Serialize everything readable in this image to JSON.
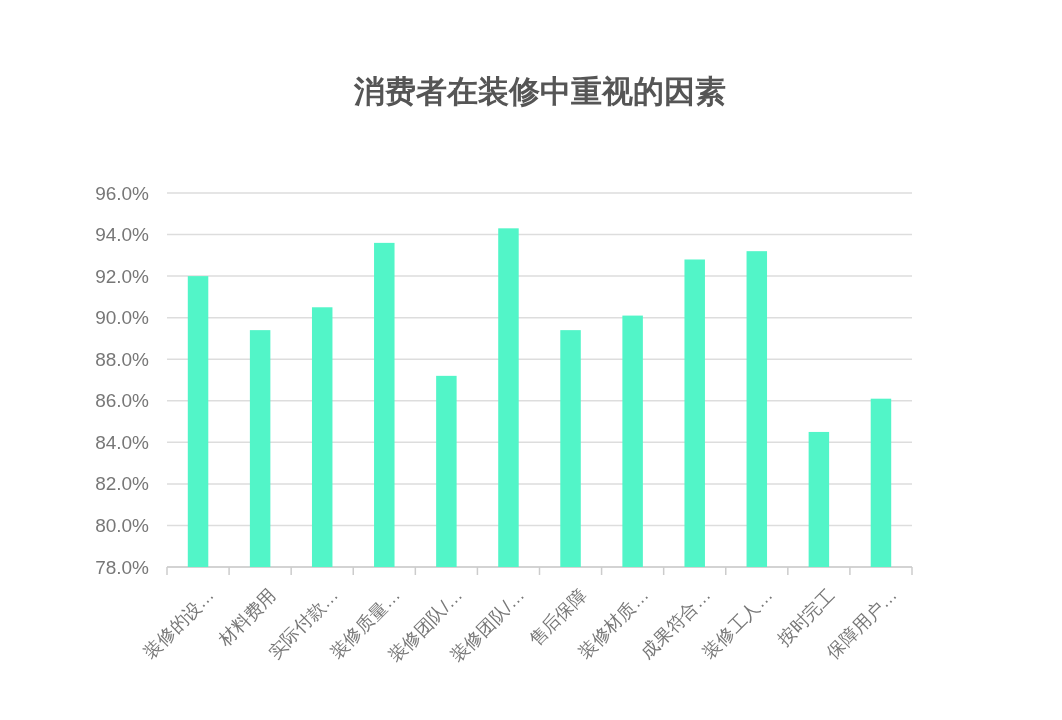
{
  "chart_data": {
    "type": "bar",
    "title": "消费者在装修中重视的因素",
    "categories": [
      "装修的设…",
      "材料费用",
      "实际付款…",
      "装修质量…",
      "装修团队/…",
      "装修团队/…",
      "售后保障",
      "装修材质…",
      "成果符合…",
      "装修工人…",
      "按时完工",
      "保障用户…"
    ],
    "values": [
      92.0,
      89.4,
      90.5,
      93.6,
      87.2,
      94.3,
      89.4,
      90.1,
      92.8,
      93.2,
      84.5,
      86.1
    ],
    "color": "#52f5c8",
    "ylim": [
      78,
      96
    ],
    "yticks": [
      {
        "value": 78,
        "label": "78.0%"
      },
      {
        "value": 80,
        "label": "80.0%"
      },
      {
        "value": 82,
        "label": "82.0%"
      },
      {
        "value": 84,
        "label": "84.0%"
      },
      {
        "value": 86,
        "label": "86.0%"
      },
      {
        "value": 88,
        "label": "88.0%"
      },
      {
        "value": 90,
        "label": "90.0%"
      },
      {
        "value": 92,
        "label": "92.0%"
      },
      {
        "value": 94,
        "label": "94.0%"
      },
      {
        "value": 96,
        "label": "96.0%"
      }
    ],
    "grid": "y"
  }
}
